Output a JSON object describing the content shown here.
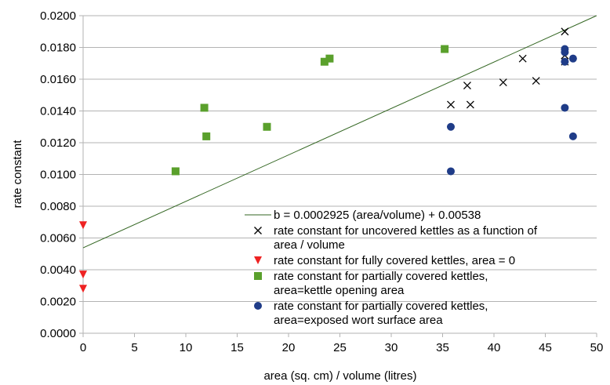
{
  "chart_data": {
    "type": "scatter",
    "xlabel": "area (sq. cm) / volume (litres)",
    "ylabel": "rate constant",
    "xlim": [
      0,
      50
    ],
    "ylim": [
      0,
      0.02
    ],
    "xticks": [
      0,
      5,
      10,
      15,
      20,
      25,
      30,
      35,
      40,
      45,
      50
    ],
    "xtick_labels": [
      "0",
      "5",
      "10",
      "15",
      "20",
      "25",
      "30",
      "35",
      "40",
      "45",
      "50"
    ],
    "yticks": [
      0,
      0.002,
      0.004,
      0.006,
      0.008,
      0.01,
      0.012,
      0.014,
      0.016,
      0.018,
      0.02
    ],
    "ytick_labels": [
      "0.0000",
      "0.0020",
      "0.0040",
      "0.0060",
      "0.0080",
      "0.0100",
      "0.0120",
      "0.0140",
      "0.0160",
      "0.0180",
      "0.0200"
    ],
    "grid": "horizontal",
    "legend_position": "lower-right",
    "trendline": {
      "name": "b = 0.0002925 (area/volume) + 0.00538",
      "slope": 0.0002925,
      "intercept": 0.00538,
      "color": "#336622"
    },
    "series": [
      {
        "name": [
          "rate constant for uncovered kettles as a function of",
          "area / volume"
        ],
        "marker": "x",
        "color": "#000000",
        "points": [
          [
            35.8,
            0.0144
          ],
          [
            37.4,
            0.0156
          ],
          [
            37.7,
            0.0144
          ],
          [
            40.9,
            0.0158
          ],
          [
            42.8,
            0.0173
          ],
          [
            44.1,
            0.0159
          ],
          [
            46.9,
            0.019
          ],
          [
            46.9,
            0.0175
          ],
          [
            46.9,
            0.0171
          ]
        ]
      },
      {
        "name": [
          "rate constant for fully covered kettles, area = 0"
        ],
        "marker": "triangle-down",
        "color": "#ee2222",
        "points": [
          [
            0,
            0.0068
          ],
          [
            0,
            0.0037
          ],
          [
            0,
            0.0028
          ]
        ]
      },
      {
        "name": [
          "rate constant for partially covered kettles,",
          "area=kettle opening area"
        ],
        "marker": "square",
        "color": "#5aa02c",
        "points": [
          [
            9.0,
            0.0102
          ],
          [
            11.8,
            0.0142
          ],
          [
            12.0,
            0.0124
          ],
          [
            17.9,
            0.013
          ],
          [
            23.5,
            0.0171
          ],
          [
            24.0,
            0.0173
          ],
          [
            35.2,
            0.0179
          ]
        ]
      },
      {
        "name": [
          "rate constant for partially covered kettles,",
          "area=exposed wort surface area"
        ],
        "marker": "circle",
        "color": "#1f3c88",
        "points": [
          [
            35.8,
            0.0102
          ],
          [
            35.8,
            0.013
          ],
          [
            46.9,
            0.0179
          ],
          [
            46.9,
            0.0177
          ],
          [
            46.9,
            0.0171
          ],
          [
            46.9,
            0.0142
          ],
          [
            47.7,
            0.0173
          ],
          [
            47.7,
            0.0124
          ]
        ]
      }
    ]
  }
}
